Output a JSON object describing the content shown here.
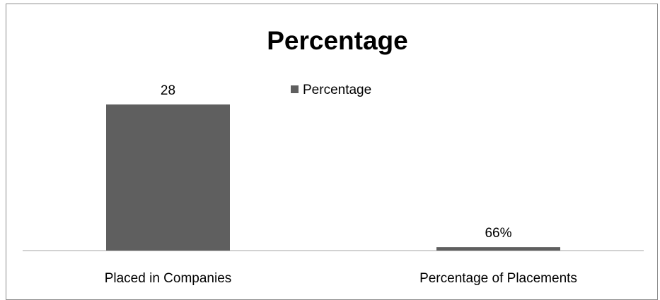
{
  "chart_data": {
    "type": "bar",
    "title": "Percentage",
    "categories": [
      "Placed in Companies",
      "Percentage of Placements"
    ],
    "series": [
      {
        "name": "Percentage",
        "values": [
          28,
          0.66
        ],
        "data_labels": [
          "28",
          "66%"
        ],
        "color": "#5f5f5f"
      }
    ],
    "ylim": [
      0,
      28
    ],
    "grid": false,
    "legend_position": "top-right"
  }
}
